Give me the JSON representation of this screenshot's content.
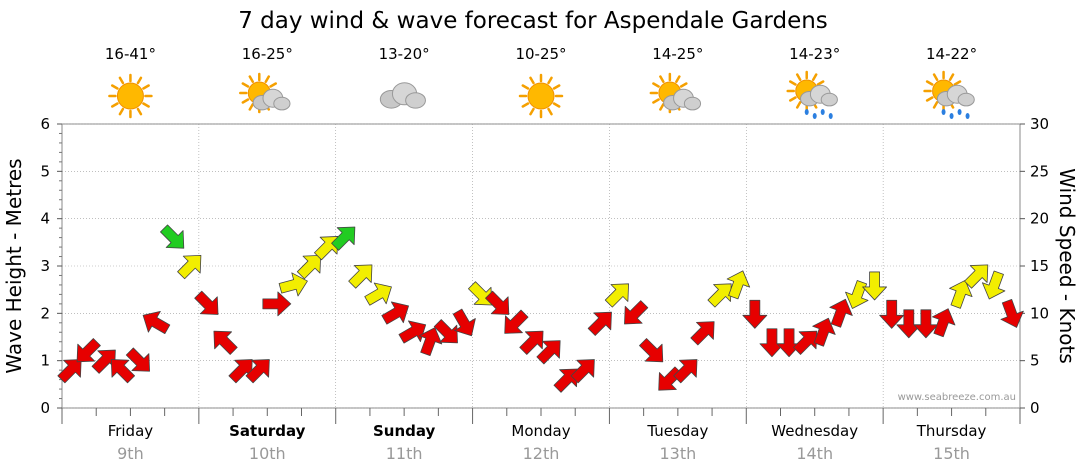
{
  "chart_data": {
    "type": "line",
    "title": "7 day wind & wave forecast for Aspendale Gardens",
    "ylabel_left": "Wave Height - Metres",
    "ylabel_right": "Wind Speed - Knots",
    "ylim_left": [
      0,
      6
    ],
    "ylim_right": [
      0,
      30
    ],
    "yticks_left": [
      "0",
      "1",
      "2",
      "3",
      "4",
      "5",
      "6"
    ],
    "yticks_right": [
      "0",
      "5",
      "10",
      "15",
      "20",
      "25",
      "30"
    ],
    "watermark": "www.seabreeze.com.au",
    "days": [
      {
        "name": "Friday",
        "date": "9th",
        "bold": false,
        "temp": "16-41°",
        "icon": "sun-icon"
      },
      {
        "name": "Saturday",
        "date": "10th",
        "bold": true,
        "temp": "16-25°",
        "icon": "sun-cloud-icon"
      },
      {
        "name": "Sunday",
        "date": "11th",
        "bold": true,
        "temp": "13-20°",
        "icon": "cloud-icon"
      },
      {
        "name": "Monday",
        "date": "12th",
        "bold": false,
        "temp": "10-25°",
        "icon": "sun-icon"
      },
      {
        "name": "Tuesday",
        "date": "13th",
        "bold": false,
        "temp": "14-25°",
        "icon": "sun-cloud-icon"
      },
      {
        "name": "Wednesday",
        "date": "14th",
        "bold": false,
        "temp": "14-23°",
        "icon": "sun-rain-icon"
      },
      {
        "name": "Thursday",
        "date": "15th",
        "bold": false,
        "temp": "14-22°",
        "icon": "sun-rain-icon"
      }
    ],
    "colors": {
      "light": "#e60000",
      "moderate": "#f2ee00",
      "strong": "#22cc22"
    },
    "series": [
      {
        "name": "wind",
        "hours": [
          0,
          3,
          6,
          9,
          12,
          15,
          18,
          21,
          24,
          27,
          30,
          33,
          36,
          39,
          42,
          45,
          48,
          51,
          54,
          57,
          60,
          63,
          66,
          69,
          72,
          75,
          78,
          81,
          84,
          87,
          90,
          93,
          96,
          99,
          102,
          105,
          108,
          111,
          114,
          117,
          120,
          123,
          126,
          129,
          132,
          135,
          138,
          141,
          144,
          147,
          150,
          153,
          156,
          159,
          162,
          165
        ],
        "speed_knots": [
          4,
          6,
          5,
          4,
          5,
          9,
          18,
          15,
          11,
          7,
          4,
          4,
          11,
          13,
          15,
          17,
          18,
          14,
          12,
          10,
          8,
          7,
          8,
          9,
          12,
          11,
          9,
          7,
          6,
          3,
          4,
          9,
          12,
          10,
          6,
          3,
          4,
          8,
          12,
          13,
          10,
          7,
          7,
          7,
          8,
          10,
          12,
          13,
          10,
          9,
          9,
          9,
          12,
          14,
          13,
          10
        ],
        "direction_deg": [
          45,
          225,
          45,
          315,
          135,
          300,
          135,
          45,
          135,
          315,
          45,
          45,
          90,
          75,
          45,
          45,
          45,
          45,
          60,
          60,
          60,
          20,
          135,
          150,
          135,
          135,
          225,
          45,
          45,
          45,
          45,
          45,
          45,
          225,
          135,
          225,
          45,
          45,
          45,
          20,
          180,
          180,
          180,
          45,
          20,
          20,
          200,
          180,
          180,
          180,
          180,
          20,
          20,
          45,
          200,
          160
        ]
      }
    ],
    "waves": {
      "hours": [
        0,
        24,
        48,
        72,
        96,
        120,
        144,
        168
      ],
      "height_m": [
        0,
        0,
        0,
        0,
        0,
        0,
        0,
        0
      ]
    }
  }
}
